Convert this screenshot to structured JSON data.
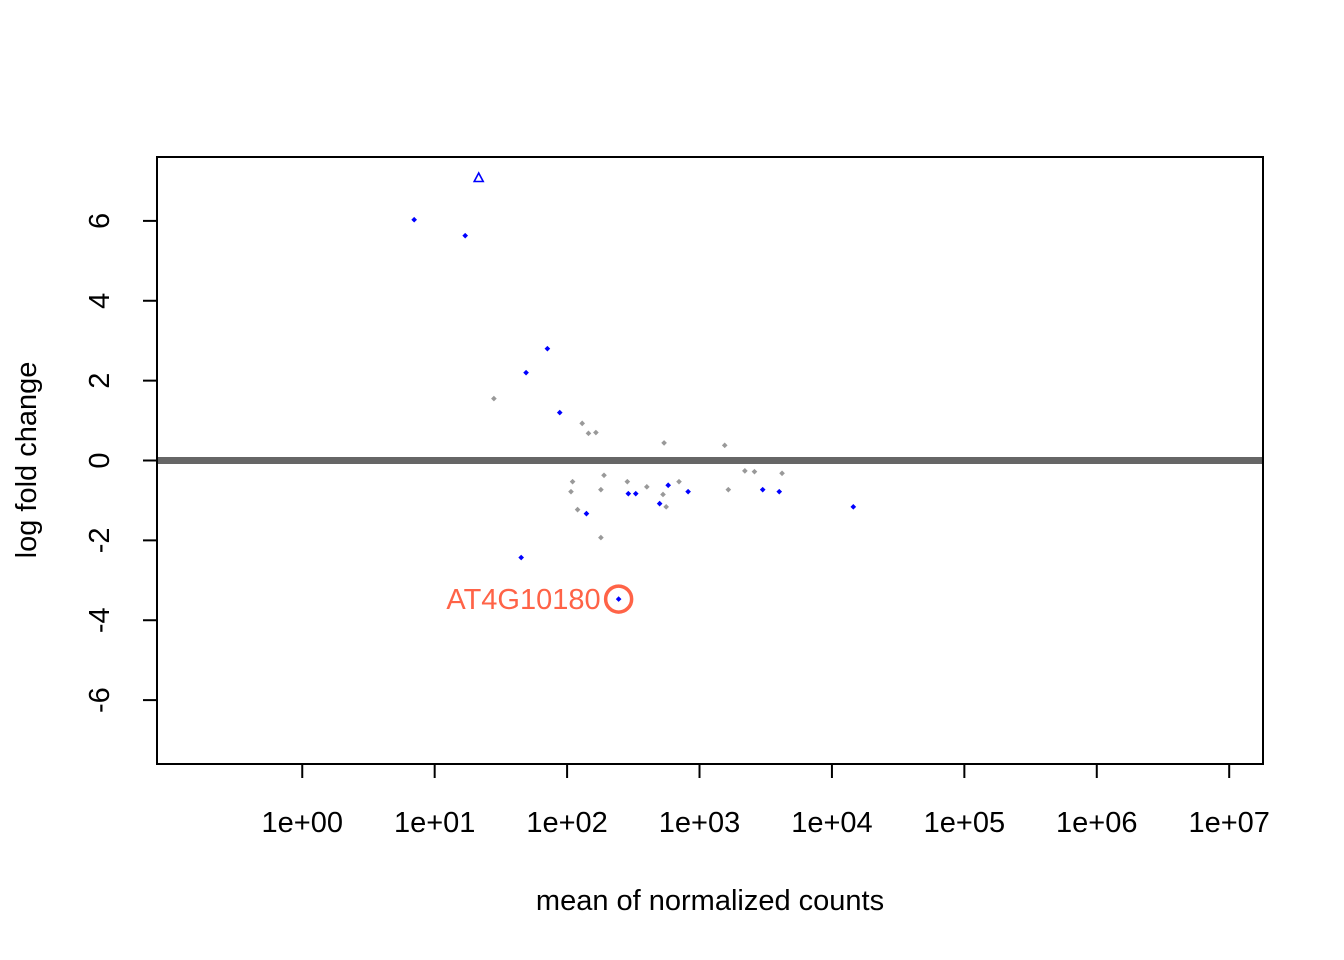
{
  "chart_data": {
    "type": "scatter",
    "title": "",
    "xlabel": "mean of normalized counts",
    "ylabel": "log fold change",
    "x_scale": "log10",
    "xlim": [
      0.08,
      18000000
    ],
    "ylim": [
      -7.6,
      7.6
    ],
    "x_ticks": [
      1,
      10,
      100,
      1000,
      10000,
      100000,
      1000000,
      10000000
    ],
    "x_tick_labels": [
      "1e+00",
      "1e+01",
      "1e+02",
      "1e+03",
      "1e+04",
      "1e+05",
      "1e+06",
      "1e+07"
    ],
    "y_ticks": [
      -6,
      -4,
      -2,
      0,
      2,
      4,
      6
    ],
    "y_tick_labels": [
      "-6",
      "-4",
      "-2",
      "0",
      "2",
      "4",
      "6"
    ],
    "reference_line": {
      "y": 0,
      "color": "#666666"
    },
    "grid": false,
    "colors": {
      "significant": "#0000ff",
      "not_significant": "#999999",
      "highlight": "#ff6347"
    },
    "series": [
      {
        "color": "#0000ff",
        "points": [
          {
            "x": 7.0,
            "y": 6.03
          },
          {
            "x": 17.0,
            "y": 5.63
          },
          {
            "x": 71.0,
            "y": 2.8
          },
          {
            "x": 49.0,
            "y": 2.2
          },
          {
            "x": 88.0,
            "y": 1.2
          },
          {
            "x": 140.0,
            "y": -1.33
          },
          {
            "x": 290.0,
            "y": -0.83
          },
          {
            "x": 330.0,
            "y": -0.83
          },
          {
            "x": 500.0,
            "y": -1.08
          },
          {
            "x": 580.0,
            "y": -0.62
          },
          {
            "x": 820.0,
            "y": -0.78
          },
          {
            "x": 3000.0,
            "y": -0.73
          },
          {
            "x": 4000.0,
            "y": -0.78
          },
          {
            "x": 14500.0,
            "y": -1.16
          },
          {
            "x": 45.0,
            "y": -2.43
          },
          {
            "x": 245.0,
            "y": -3.47
          }
        ]
      },
      {
        "color": "#999999",
        "points": [
          {
            "x": 28.0,
            "y": 1.55
          },
          {
            "x": 130.0,
            "y": 0.93
          },
          {
            "x": 145.0,
            "y": 0.68
          },
          {
            "x": 165.0,
            "y": 0.7
          },
          {
            "x": 540.0,
            "y": 0.44
          },
          {
            "x": 1550.0,
            "y": 0.38
          },
          {
            "x": 110.0,
            "y": -0.53
          },
          {
            "x": 107.0,
            "y": -0.78
          },
          {
            "x": 190.0,
            "y": -0.37
          },
          {
            "x": 180.0,
            "y": -0.73
          },
          {
            "x": 120.0,
            "y": -1.23
          },
          {
            "x": 180.0,
            "y": -1.93
          },
          {
            "x": 285.0,
            "y": -0.53
          },
          {
            "x": 400.0,
            "y": -0.66
          },
          {
            "x": 530.0,
            "y": -0.85
          },
          {
            "x": 560.0,
            "y": -1.16
          },
          {
            "x": 700.0,
            "y": -0.53
          },
          {
            "x": 1650.0,
            "y": -0.73
          },
          {
            "x": 2200.0,
            "y": -0.26
          },
          {
            "x": 2600.0,
            "y": -0.28
          },
          {
            "x": 4200.0,
            "y": -0.32
          }
        ]
      }
    ],
    "out_of_range": [
      {
        "x": 21.5,
        "y": 7.0,
        "marker": "triangle-up",
        "color": "#0000ff"
      }
    ],
    "highlight": {
      "label": "AT4G10180",
      "x": 245.0,
      "y": -3.47,
      "color": "#ff6347"
    }
  }
}
